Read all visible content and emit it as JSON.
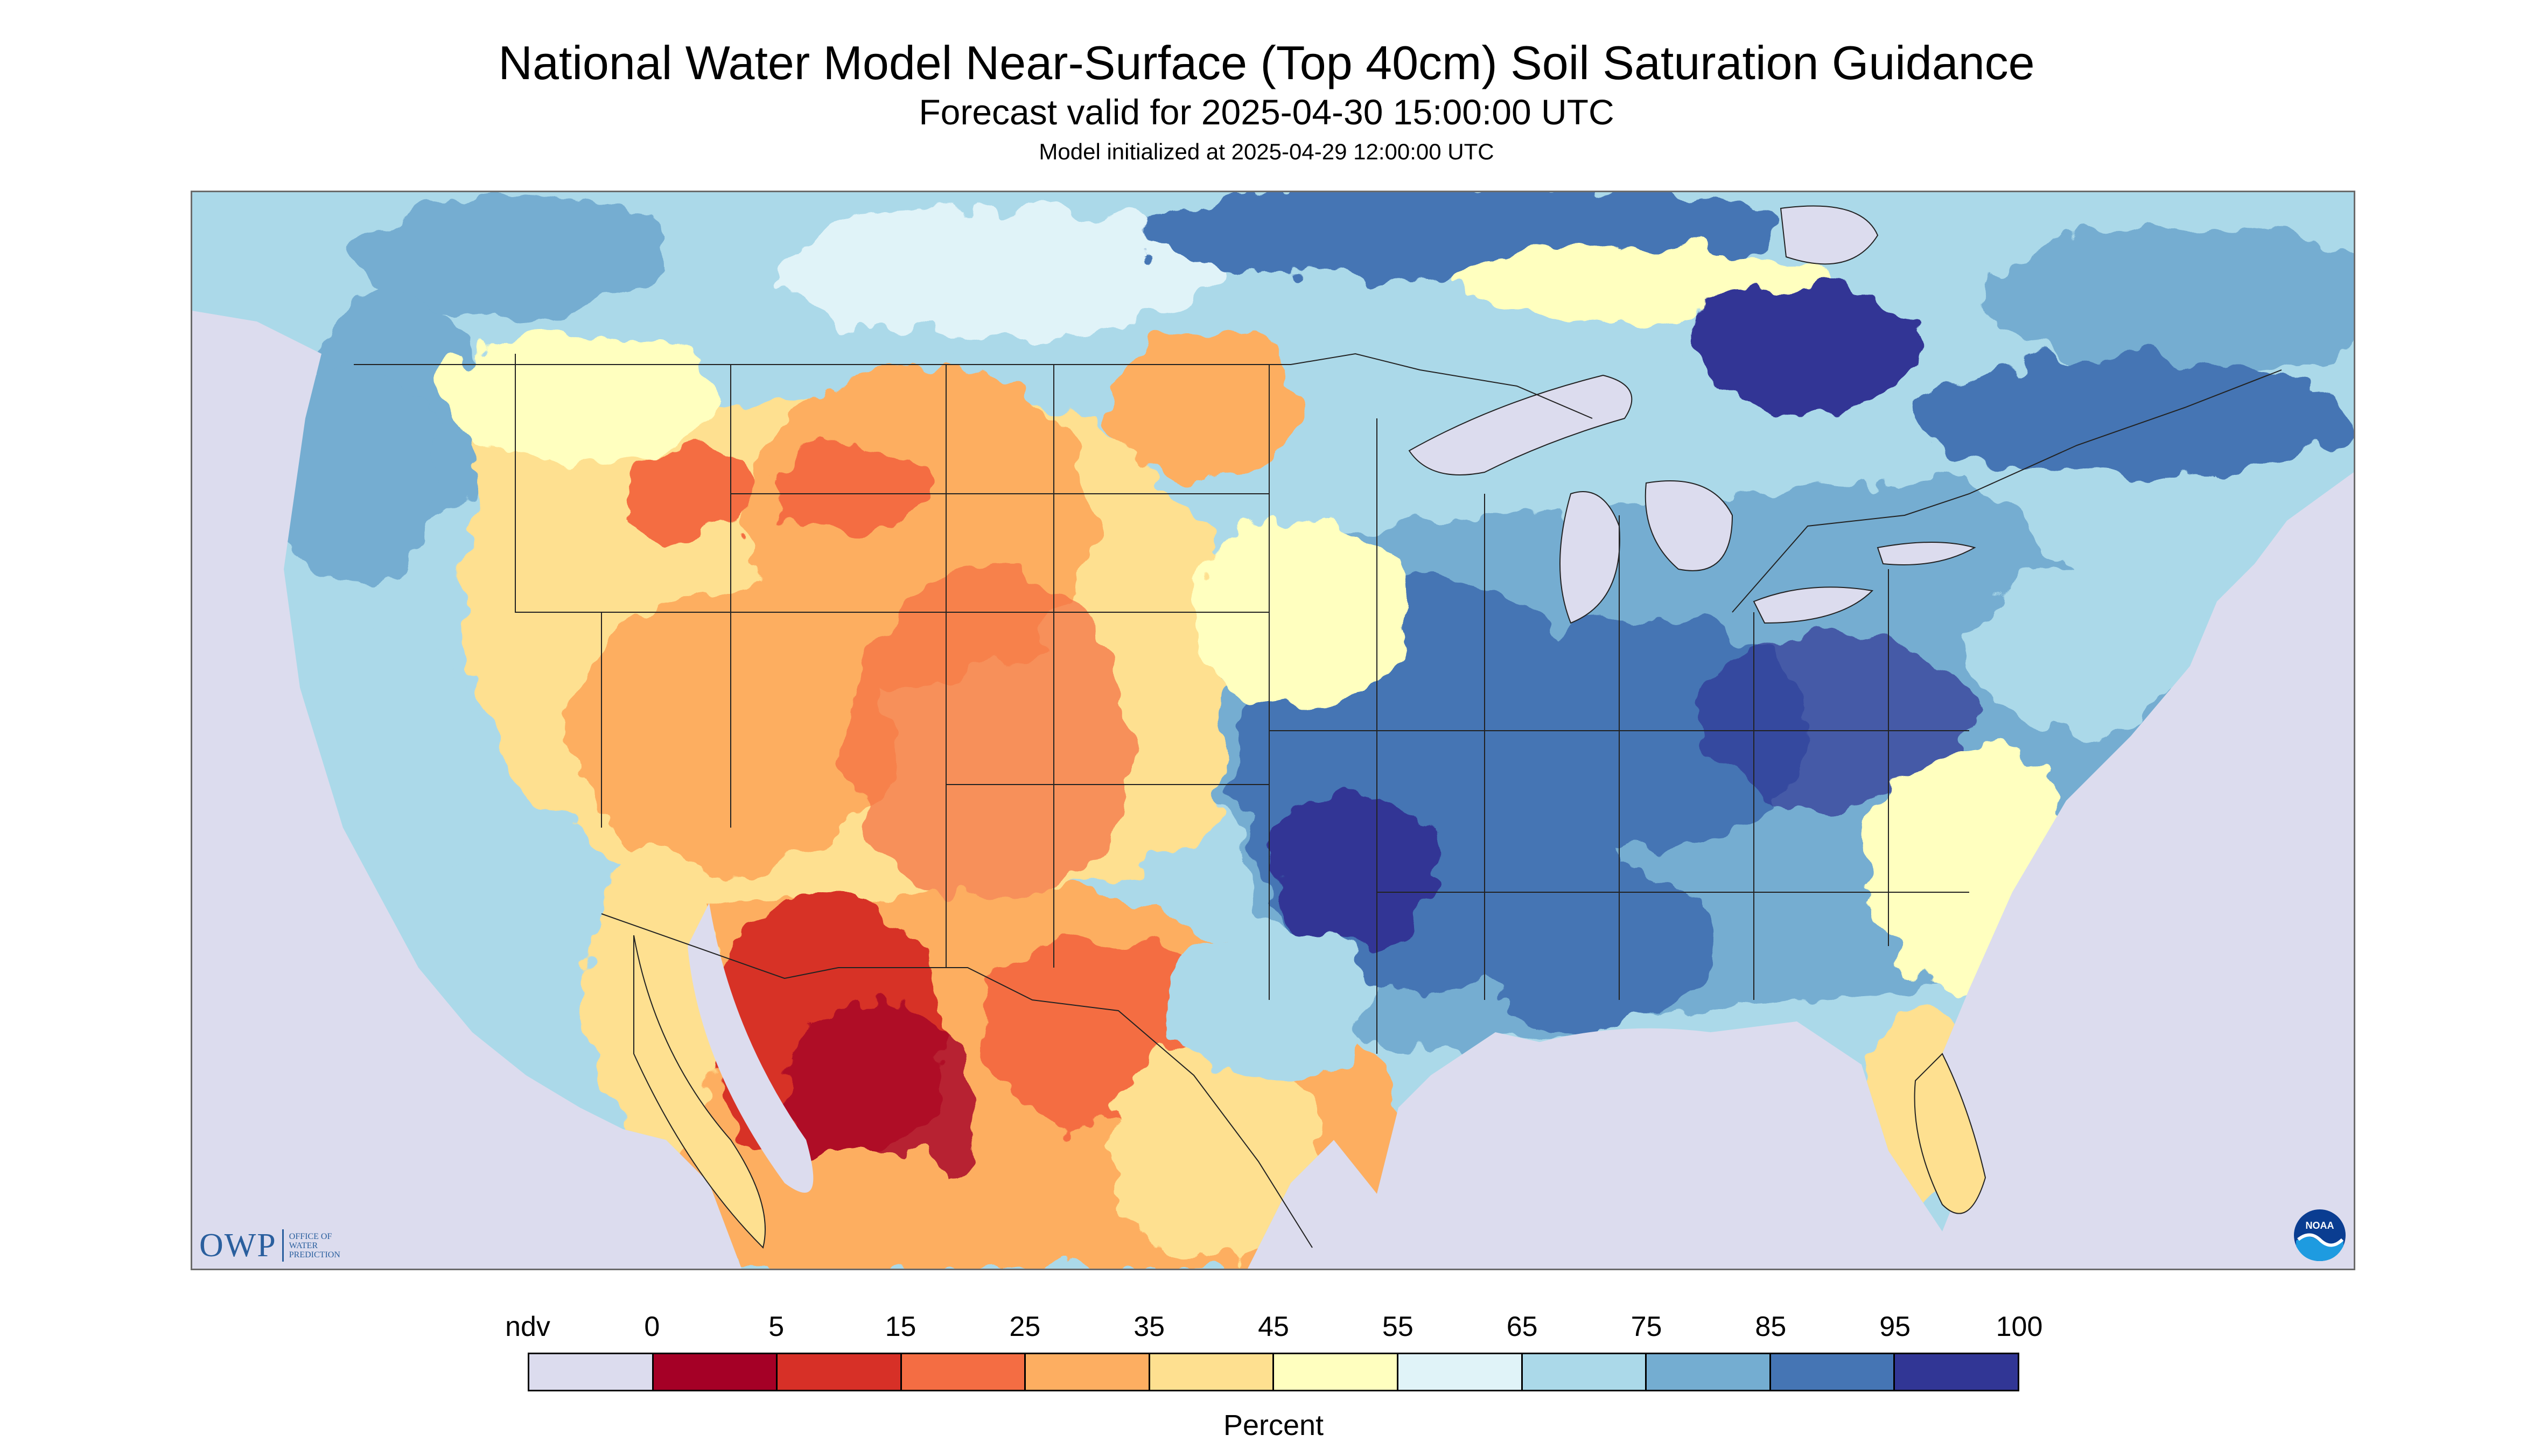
{
  "title": "National Water Model Near-Surface (Top 40cm) Soil Saturation Guidance",
  "subtitle": "Forecast valid for 2025-04-30 15:00:00 UTC",
  "init_line": "Model initialized at 2025-04-29 12:00:00 UTC",
  "logos": {
    "owp": {
      "letters": "OWP",
      "line1": "OFFICE OF",
      "line2": "WATER",
      "line3": "PREDICTION"
    },
    "noaa": {
      "text": "NOAA"
    }
  },
  "legend": {
    "unit": "Percent",
    "labels": [
      "ndv",
      "0",
      "5",
      "15",
      "25",
      "35",
      "45",
      "55",
      "65",
      "75",
      "85",
      "95",
      "100"
    ],
    "colors": [
      "#dcdcee",
      "#a50026",
      "#d73027",
      "#f46d43",
      "#fdae61",
      "#fee090",
      "#ffffbf",
      "#e0f3f8",
      "#abd9e9",
      "#74add1",
      "#4575b4",
      "#313695"
    ]
  },
  "map_colors": {
    "ndv": "#dcdcee",
    "water": "#dcdcee",
    "borders": "#222222"
  }
}
